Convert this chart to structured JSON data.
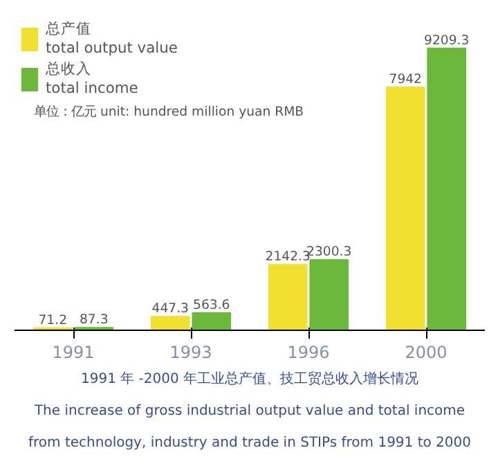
{
  "chart_data": {
    "type": "bar",
    "categories": [
      "1991",
      "1993",
      "1996",
      "2000"
    ],
    "series": [
      {
        "name": "总产值\ntotal output value",
        "color": "#f0e030",
        "values": [
          71.2,
          447.3,
          2142.3,
          7942
        ]
      },
      {
        "name": "总收入\ntotal income",
        "color": "#6cb83a",
        "values": [
          87.3,
          563.6,
          2300.3,
          9209.3
        ]
      }
    ],
    "data_labels": true,
    "legend": "top left",
    "grid": false,
    "annotations": [
      "单位：亿元 unit: hundred million yuan RMB",
      "1991 年 -2000 年工业总产值、技工贸总收入增长情况",
      "The increase of gross industrial output value and total income",
      "from technology, industry and trade in STIPs from 1991 to 2000"
    ]
  }
}
